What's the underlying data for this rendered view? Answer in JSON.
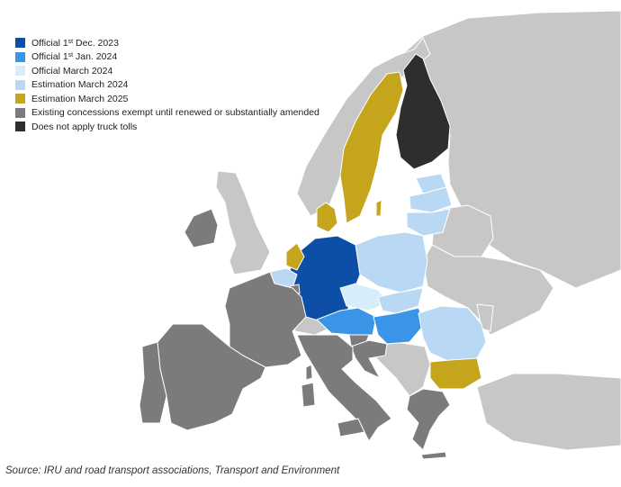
{
  "colors": {
    "sea": "#ffffff",
    "land": "#c7c7c7",
    "border": "#ffffff"
  },
  "legend": [
    {
      "key": "official_dec_2023",
      "label": "Official 1st Dec. 2023",
      "label_parts": [
        "Official 1",
        "st",
        " Dec. 2023"
      ],
      "color": "#0d4ea6"
    },
    {
      "key": "official_jan_2024",
      "label": "Official 1st Jan. 2024",
      "label_parts": [
        "Official 1",
        "st",
        " Jan. 2024"
      ],
      "color": "#3a95e8"
    },
    {
      "key": "official_mar_2024",
      "label": "Official March 2024",
      "label_parts": [
        "Official March 2024",
        "",
        ""
      ],
      "color": "#d7eefa"
    },
    {
      "key": "estimation_mar_2024",
      "label": "Estimation March 2024",
      "label_parts": [
        "Estimation March 2024",
        "",
        ""
      ],
      "color": "#b9d8f4"
    },
    {
      "key": "estimation_mar_2025",
      "label": "Estimation March 2025",
      "label_parts": [
        "Estimation March 2025",
        "",
        ""
      ],
      "color": "#c4a51c"
    },
    {
      "key": "existing_concessions",
      "label": "Existing concessions exempt until renewed or substantially amended",
      "label_parts": [
        "Existing concessions exempt until renewed or substantially amended",
        "",
        ""
      ],
      "color": "#7b7b7b"
    },
    {
      "key": "not_apply",
      "label": "Does not apply truck tolls",
      "label_parts": [
        "Does not apply truck tolls",
        "",
        ""
      ],
      "color": "#2e2e2e"
    }
  ],
  "countries": [
    {
      "name": "germany",
      "category": "official_dec_2023"
    },
    {
      "name": "austria",
      "category": "official_jan_2024"
    },
    {
      "name": "hungary",
      "category": "official_jan_2024"
    },
    {
      "name": "czechia",
      "category": "official_mar_2024"
    },
    {
      "name": "poland",
      "category": "estimation_mar_2024"
    },
    {
      "name": "slovakia",
      "category": "estimation_mar_2024"
    },
    {
      "name": "romania",
      "category": "estimation_mar_2024"
    },
    {
      "name": "estonia",
      "category": "estimation_mar_2024"
    },
    {
      "name": "latvia",
      "category": "estimation_mar_2024"
    },
    {
      "name": "lithuania",
      "category": "estimation_mar_2024"
    },
    {
      "name": "belgium",
      "category": "estimation_mar_2024"
    },
    {
      "name": "sweden",
      "category": "estimation_mar_2025"
    },
    {
      "name": "denmark",
      "category": "estimation_mar_2025"
    },
    {
      "name": "netherlands",
      "category": "estimation_mar_2025"
    },
    {
      "name": "bulgaria",
      "category": "estimation_mar_2025"
    },
    {
      "name": "france",
      "category": "existing_concessions"
    },
    {
      "name": "spain",
      "category": "existing_concessions"
    },
    {
      "name": "portugal",
      "category": "existing_concessions"
    },
    {
      "name": "italy",
      "category": "existing_concessions"
    },
    {
      "name": "ireland",
      "category": "existing_concessions"
    },
    {
      "name": "greece",
      "category": "existing_concessions"
    },
    {
      "name": "croatia",
      "category": "existing_concessions"
    },
    {
      "name": "slovenia",
      "category": "existing_concessions"
    },
    {
      "name": "luxembourg",
      "category": "existing_concessions"
    },
    {
      "name": "finland",
      "category": "not_apply"
    }
  ],
  "source": "Source: IRU and road transport associations, Transport and Environment"
}
